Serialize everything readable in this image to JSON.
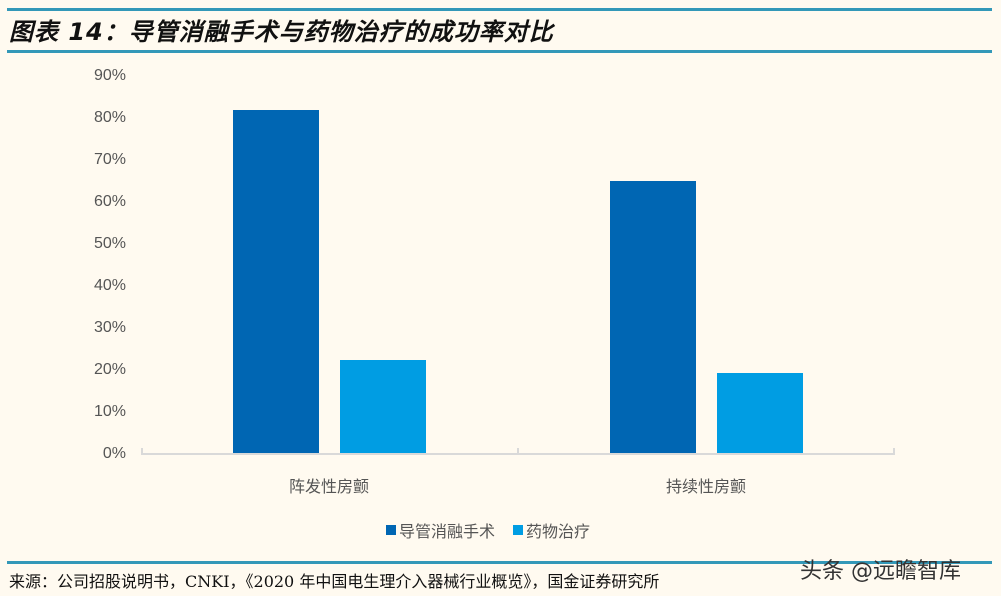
{
  "header": {
    "title": "图表 14：导管消融手术与药物治疗的成功率对比"
  },
  "chart_data": {
    "type": "bar",
    "title": "图表 14：导管消融手术与药物治疗的成功率对比",
    "xlabel": "",
    "ylabel": "",
    "categories": [
      "阵发性房颤",
      "持续性房颤"
    ],
    "series": [
      {
        "name": "导管消融手术",
        "color": "#0066b3",
        "values": [
          0.82,
          0.65
        ]
      },
      {
        "name": "药物治疗",
        "color": "#009de3",
        "values": [
          0.224,
          0.192
        ]
      }
    ],
    "ylim": [
      0,
      0.9
    ],
    "yticks": [
      "0%",
      "10%",
      "20%",
      "30%",
      "40%",
      "50%",
      "60%",
      "70%",
      "80%",
      "90%"
    ],
    "grid": false,
    "legend_position": "bottom"
  },
  "legend": {
    "items": [
      {
        "label": "导管消融手术",
        "color": "#0066b3"
      },
      {
        "label": "药物治疗",
        "color": "#009de3"
      }
    ]
  },
  "footer": {
    "source": "来源：公司招股说明书，CNKI，《2020 年中国电生理介入器械行业概览》，国金证券研究所",
    "watermark": "头条 @远瞻智库"
  },
  "colors": {
    "rule": "#3398b8",
    "background": "#fffaf0"
  }
}
